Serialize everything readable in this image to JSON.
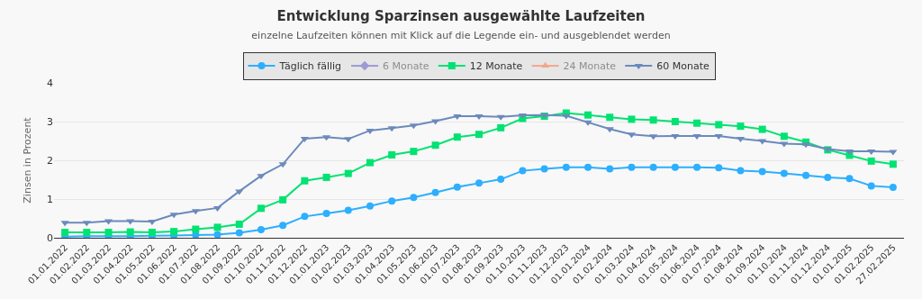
{
  "chart_data": {
    "type": "line",
    "title": "Entwicklung Sparzinsen ausgewählte Laufzeiten",
    "subtitle": "einzelne Laufzeiten können mit Klick auf die Legende ein- und ausgeblendet werden",
    "ylabel": "Zinsen in Prozent",
    "categories": [
      "01.01.2022",
      "01.02.2022",
      "01.03.2022",
      "01.04.2022",
      "01.05.2022",
      "01.06.2022",
      "01.07.2022",
      "01.08.2022",
      "01.09.2022",
      "01.10.2022",
      "01.11.2022",
      "01.12.2022",
      "01.01.2023",
      "01.02.2023",
      "01.03.2023",
      "01.04.2023",
      "01.05.2023",
      "01.06.2023",
      "01.07.2023",
      "01.08.2023",
      "01.09.2023",
      "01.10.2023",
      "01.11.2023",
      "01.12.2023",
      "01.01.2024",
      "01.02.2024",
      "01.03.2024",
      "01.04.2024",
      "01.05.2024",
      "01.06.2024",
      "01.07.2024",
      "01.08.2024",
      "01.09.2024",
      "01.10.2024",
      "01.11.2024",
      "01.12.2024",
      "01.01.2025",
      "01.02.2025",
      "27.02.2025"
    ],
    "series": [
      {
        "name": "Täglich fällig",
        "color": "#2caffe",
        "marker": "circle",
        "values": [
          0.03,
          0.04,
          0.04,
          0.04,
          0.05,
          0.06,
          0.07,
          0.08,
          0.13,
          0.21,
          0.32,
          0.55,
          0.63,
          0.71,
          0.82,
          0.95,
          1.04,
          1.17,
          1.31,
          1.41,
          1.51,
          1.73,
          1.78,
          1.82,
          1.82,
          1.78,
          1.82,
          1.82,
          1.82,
          1.82,
          1.81,
          1.73,
          1.71,
          1.66,
          1.61,
          1.56,
          1.53,
          1.34,
          1.3
        ]
      },
      {
        "name": "6 Monate",
        "color": "#544fc5",
        "marker": "diamond",
        "values": [
          null,
          null,
          null,
          null,
          null,
          null,
          null,
          null,
          null,
          null,
          null,
          null,
          null,
          null,
          null,
          null,
          null,
          null,
          null,
          null,
          null,
          null,
          null,
          null,
          null,
          null,
          null,
          null,
          null,
          null,
          null,
          null,
          null,
          null,
          null,
          null,
          null,
          null,
          null
        ]
      },
      {
        "name": "12 Monate",
        "color": "#00e272",
        "marker": "square",
        "values": [
          0.14,
          0.14,
          0.14,
          0.15,
          0.14,
          0.16,
          0.22,
          0.27,
          0.35,
          0.76,
          0.98,
          1.47,
          1.56,
          1.66,
          1.94,
          2.14,
          2.23,
          2.39,
          2.6,
          2.67,
          2.84,
          3.08,
          3.14,
          3.22,
          3.17,
          3.11,
          3.06,
          3.04,
          3.0,
          2.96,
          2.92,
          2.88,
          2.8,
          2.62,
          2.47,
          2.27,
          2.13,
          1.98,
          1.9
        ]
      },
      {
        "name": "24 Monate",
        "color": "#fe6a35",
        "marker": "triangle",
        "values": [
          null,
          null,
          null,
          null,
          null,
          null,
          null,
          null,
          null,
          null,
          null,
          null,
          null,
          null,
          null,
          null,
          null,
          null,
          null,
          null,
          null,
          null,
          null,
          null,
          null,
          null,
          null,
          null,
          null,
          null,
          null,
          null,
          null,
          null,
          null,
          null,
          null,
          null,
          null
        ]
      },
      {
        "name": "60 Monate",
        "color": "#6b8abc",
        "marker": "triangle-down",
        "values": [
          0.39,
          0.39,
          0.43,
          0.43,
          0.42,
          0.6,
          0.69,
          0.77,
          1.2,
          1.6,
          1.9,
          2.56,
          2.6,
          2.55,
          2.77,
          2.83,
          2.9,
          3.01,
          3.14,
          3.14,
          3.12,
          3.16,
          3.17,
          3.15,
          2.98,
          2.81,
          2.67,
          2.62,
          2.63,
          2.63,
          2.63,
          2.56,
          2.5,
          2.43,
          2.41,
          2.29,
          2.23,
          2.23,
          2.22
        ]
      }
    ],
    "ylim": [
      0,
      4
    ],
    "yticks": [
      0,
      1,
      2,
      3,
      4
    ],
    "grid": "y",
    "legend": "top"
  }
}
